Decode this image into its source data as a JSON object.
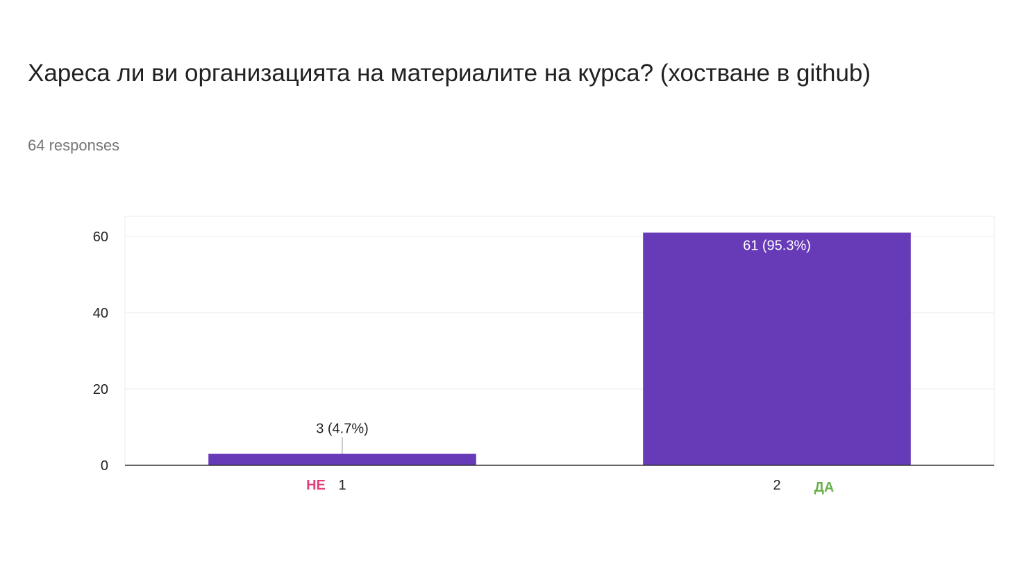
{
  "title": "Хареса ли ви организацията на материалите на курса? (хостване в github)",
  "subtitle": "64 responses",
  "chart_data": {
    "type": "bar",
    "categories": [
      "1",
      "2"
    ],
    "values": [
      3,
      61
    ],
    "data_labels": [
      "3 (4.7%)",
      "61 (95.3%)"
    ],
    "ylim": [
      0,
      65
    ],
    "yticks": [
      0,
      20,
      40,
      60
    ],
    "grid": true,
    "bar_color": "#673ab7",
    "annotations": [
      {
        "text": "НЕ",
        "category": "1",
        "color": "#e53d7a"
      },
      {
        "text": "ДА",
        "category": "2",
        "color": "#6ab04c"
      }
    ]
  }
}
